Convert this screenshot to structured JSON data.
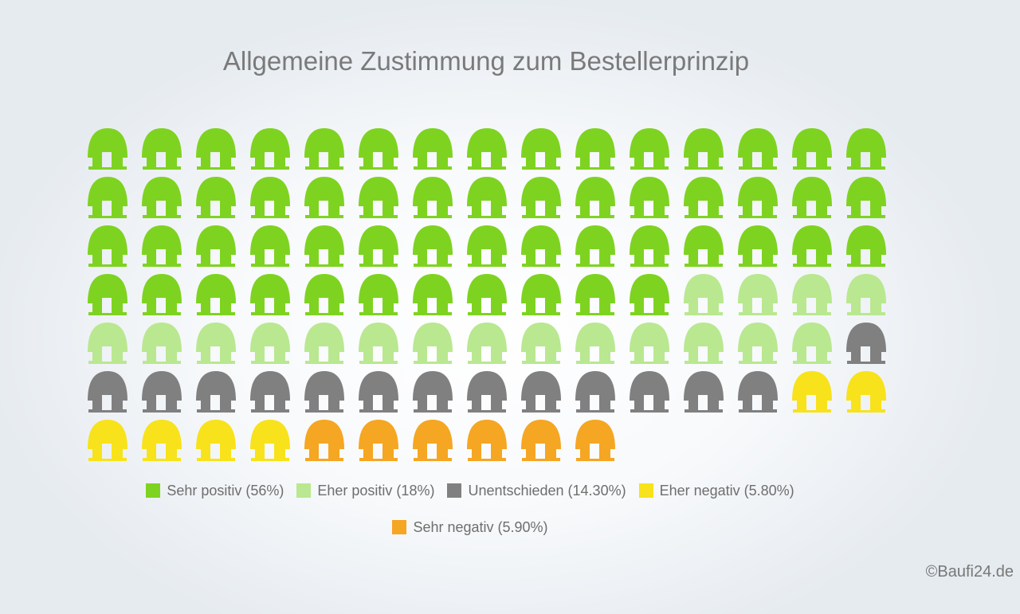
{
  "title": "Allgemeine Zustimmung zum Bestellerprinzip",
  "copyright": "©Baufi24.de",
  "chart_data": {
    "type": "pictogram",
    "icon": "house-icon",
    "title": "Allgemeine Zustimmung zum Bestellerprinzip",
    "unit_percent_per_icon": 1,
    "total_icons": 100,
    "columns": 15,
    "legend_position": "bottom",
    "series": [
      {
        "name": "Sehr positiv",
        "label": "Sehr positiv (56%)",
        "value": 56,
        "count": 56,
        "color": "#7ed321"
      },
      {
        "name": "Eher positiv",
        "label": "Eher positiv (18%)",
        "value": 18,
        "count": 18,
        "color": "#b9e890"
      },
      {
        "name": "Unentschieden",
        "label": "Unentschieden (14.30%)",
        "value": 14.3,
        "count": 14,
        "color": "#808080"
      },
      {
        "name": "Eher negativ",
        "label": "Eher negativ (5.80%)",
        "value": 5.8,
        "count": 6,
        "color": "#f8e21b"
      },
      {
        "name": "Sehr negativ",
        "label": "Sehr negativ (5.90%)",
        "value": 5.9,
        "count": 6,
        "color": "#f5a623"
      }
    ]
  }
}
